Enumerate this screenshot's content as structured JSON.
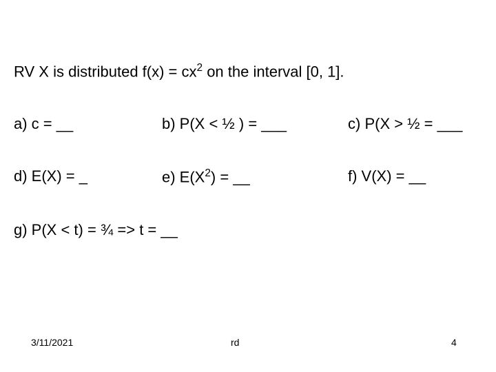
{
  "title_pre": "RV X is distributed f(x) = cx",
  "title_sup": "2",
  "title_post": " on the interval [0, 1].",
  "a": "a)  c = __",
  "b": "b)  P(X < ½ ) = ___",
  "c": "c)  P(X > ½ = ___",
  "d": "d)  E(X) = _",
  "e_pre": "e)  E(X",
  "e_sup": "2",
  "e_post": ") = __",
  "f": "f)  V(X) = __",
  "g": "g)  P(X < t) = ¾ => t = __",
  "footer": {
    "date": "3/11/2021",
    "center": "rd",
    "page": "4"
  }
}
